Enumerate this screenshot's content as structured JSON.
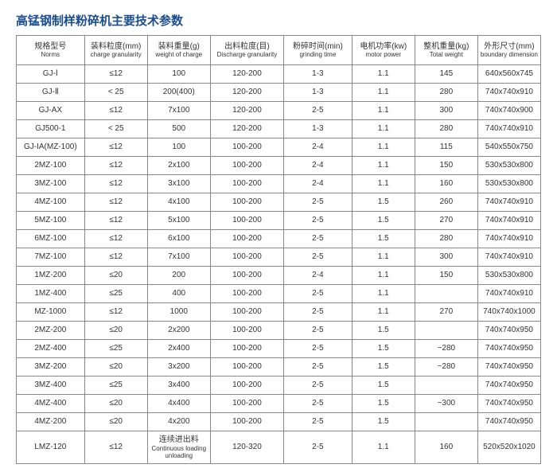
{
  "title": "高锰钢制样粉碎机主要技术参数",
  "columns": [
    {
      "cn": "规格型号",
      "en": "Norms"
    },
    {
      "cn": "装料粒度(mm)",
      "en": "charge granularity"
    },
    {
      "cn": "装料重量(g)",
      "en": "weight of charge"
    },
    {
      "cn": "出料粒度(目)",
      "en": "Discharge granularity"
    },
    {
      "cn": "粉碎时间(min)",
      "en": "grinding time"
    },
    {
      "cn": "电机功率(kw)",
      "en": "motor power"
    },
    {
      "cn": "整机重量(kg)",
      "en": "Total weight"
    },
    {
      "cn": "外形尺寸(mm)",
      "en": "boundary dimension"
    }
  ],
  "rows": [
    [
      "GJ-Ⅰ",
      "≤12",
      "100",
      "120-200",
      "1-3",
      "1.1",
      "145",
      "640x560x745"
    ],
    [
      "GJ-Ⅱ",
      "< 25",
      "200(400)",
      "120-200",
      "1-3",
      "1.1",
      "280",
      "740x740x910"
    ],
    [
      "GJ-AX",
      "≤12",
      "7x100",
      "120-200",
      "2-5",
      "1.1",
      "300",
      "740x740x900"
    ],
    [
      "GJ500-1",
      "< 25",
      "500",
      "120-200",
      "1-3",
      "1.1",
      "280",
      "740x740x910"
    ],
    [
      "GJ-IA(MZ-100)",
      "≤12",
      "100",
      "100-200",
      "2-4",
      "1.1",
      "115",
      "540x550x750"
    ],
    [
      "2MZ-100",
      "≤12",
      "2x100",
      "100-200",
      "2-4",
      "1.1",
      "150",
      "530x530x800"
    ],
    [
      "3MZ-100",
      "≤12",
      "3x100",
      "100-200",
      "2-4",
      "1.1",
      "160",
      "530x530x800"
    ],
    [
      "4MZ-100",
      "≤12",
      "4x100",
      "100-200",
      "2-5",
      "1.5",
      "260",
      "740x740x910"
    ],
    [
      "5MZ-100",
      "≤12",
      "5x100",
      "100-200",
      "2-5",
      "1.5",
      "270",
      "740x740x910"
    ],
    [
      "6MZ-100",
      "≤12",
      "6x100",
      "100-200",
      "2-5",
      "1.5",
      "280",
      "740x740x910"
    ],
    [
      "7MZ-100",
      "≤12",
      "7x100",
      "100-200",
      "2-5",
      "1.1",
      "300",
      "740x740x910"
    ],
    [
      "1MZ-200",
      "≤20",
      "200",
      "100-200",
      "2-4",
      "1.1",
      "150",
      "530x530x800"
    ],
    [
      "1MZ-400",
      "≤25",
      "400",
      "100-200",
      "2-5",
      "1.1",
      "",
      "740x740x910"
    ],
    [
      "MZ-1000",
      "≤12",
      "1000",
      "100-200",
      "2-5",
      "1.1",
      "270",
      "740x740x1000"
    ],
    [
      "2MZ-200",
      "≤20",
      "2x200",
      "100-200",
      "2-5",
      "1.5",
      "",
      "740x740x950"
    ],
    [
      "2MZ-400",
      "≤25",
      "2x400",
      "100-200",
      "2-5",
      "1.5",
      "~280",
      "740x740x950"
    ],
    [
      "3MZ-200",
      "≤20",
      "3x200",
      "100-200",
      "2-5",
      "1.5",
      "~280",
      "740x740x950"
    ],
    [
      "3MZ-400",
      "≤25",
      "3x400",
      "100-200",
      "2-5",
      "1.5",
      "",
      "740x740x950"
    ],
    [
      "4MZ-400",
      "≤20",
      "4x400",
      "100-200",
      "2-5",
      "1.5",
      "~300",
      "740x740x950"
    ],
    [
      "4MZ-200",
      "≤20",
      "4x200",
      "100-200",
      "2-5",
      "1.5",
      "",
      "740x740x950"
    ]
  ],
  "lastRow": {
    "model": "LMZ-120",
    "gran": "≤12",
    "weight_cn": "连续进出料",
    "weight_en": "Continuous loading unloading",
    "discharge": "120-320",
    "time": "2-5",
    "power": "1.1",
    "total": "160",
    "dim": "520x520x1020"
  }
}
